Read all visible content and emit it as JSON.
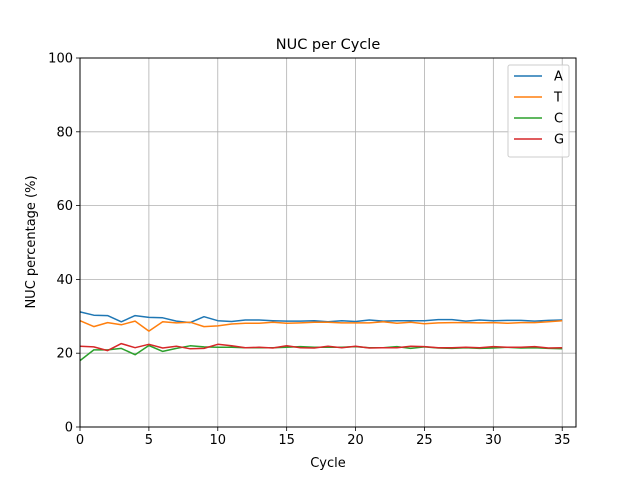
{
  "chart_data": {
    "type": "line",
    "title": "NUC per Cycle",
    "xlabel": "Cycle",
    "ylabel": "NUC percentage (%)",
    "xlim": [
      0,
      36
    ],
    "ylim": [
      0,
      100
    ],
    "xticks": [
      0,
      5,
      10,
      15,
      20,
      25,
      30,
      35
    ],
    "yticks": [
      0,
      20,
      40,
      60,
      80,
      100
    ],
    "grid": true,
    "legend": "top-right",
    "x": [
      0,
      1,
      2,
      3,
      4,
      5,
      6,
      7,
      8,
      9,
      10,
      11,
      12,
      13,
      14,
      15,
      16,
      17,
      18,
      19,
      20,
      21,
      22,
      23,
      24,
      25,
      26,
      27,
      28,
      29,
      30,
      31,
      32,
      33,
      34,
      35
    ],
    "series": [
      {
        "name": "A",
        "color": "#1f77b4",
        "values": [
          31.2,
          30.3,
          30.2,
          28.5,
          30.2,
          29.7,
          29.6,
          28.7,
          28.3,
          29.9,
          28.8,
          28.6,
          29.0,
          29.0,
          28.8,
          28.7,
          28.7,
          28.8,
          28.5,
          28.8,
          28.6,
          29.0,
          28.7,
          28.8,
          28.8,
          28.8,
          29.1,
          29.1,
          28.7,
          29.0,
          28.8,
          28.9,
          28.9,
          28.7,
          28.9,
          29.0
        ]
      },
      {
        "name": "T",
        "color": "#ff7f0e",
        "values": [
          28.8,
          27.2,
          28.3,
          27.7,
          28.7,
          26.0,
          28.5,
          28.2,
          28.4,
          27.2,
          27.4,
          27.9,
          28.1,
          28.1,
          28.4,
          28.1,
          28.2,
          28.4,
          28.4,
          28.2,
          28.2,
          28.2,
          28.5,
          28.1,
          28.4,
          28.0,
          28.2,
          28.3,
          28.3,
          28.2,
          28.3,
          28.1,
          28.3,
          28.3,
          28.5,
          28.8
        ]
      },
      {
        "name": "C",
        "color": "#2ca02c",
        "values": [
          18.0,
          20.9,
          20.9,
          21.3,
          19.6,
          22.1,
          20.5,
          21.3,
          22.0,
          21.7,
          21.6,
          21.6,
          21.5,
          21.5,
          21.5,
          21.6,
          21.8,
          21.6,
          21.6,
          21.6,
          21.8,
          21.5,
          21.5,
          21.8,
          21.3,
          21.7,
          21.4,
          21.3,
          21.5,
          21.3,
          21.4,
          21.6,
          21.4,
          21.5,
          21.3,
          21.2
        ]
      },
      {
        "name": "G",
        "color": "#d62728",
        "values": [
          21.9,
          21.7,
          20.7,
          22.6,
          21.5,
          22.4,
          21.4,
          21.9,
          21.2,
          21.3,
          22.4,
          22.0,
          21.5,
          21.6,
          21.4,
          22.0,
          21.5,
          21.4,
          21.9,
          21.5,
          21.9,
          21.4,
          21.5,
          21.5,
          21.9,
          21.8,
          21.5,
          21.5,
          21.6,
          21.5,
          21.8,
          21.6,
          21.6,
          21.8,
          21.4,
          21.5
        ]
      }
    ]
  }
}
